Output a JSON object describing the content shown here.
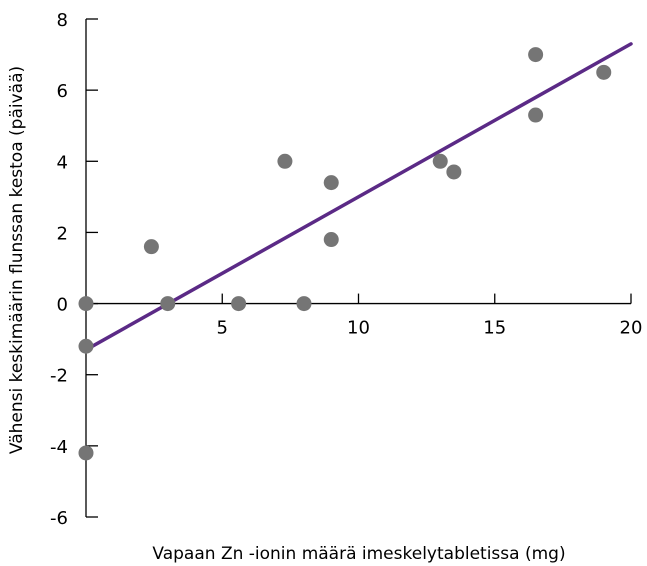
{
  "chart_data": {
    "type": "scatter",
    "title": "",
    "xlabel": "Vapaan Zn -ionin määrä imeskelytabletissa (mg)",
    "ylabel": "Vähensi keskimäärin flunssan kestoa (päivää)",
    "xlim": [
      0,
      20
    ],
    "ylim": [
      -6,
      8
    ],
    "x_ticks": [
      5,
      10,
      15,
      20
    ],
    "y_ticks": [
      -6,
      -4,
      -2,
      0,
      2,
      4,
      6,
      8
    ],
    "grid": false,
    "points": [
      {
        "x": 0,
        "y": 0
      },
      {
        "x": 0,
        "y": -1.2
      },
      {
        "x": 0,
        "y": -4.2
      },
      {
        "x": 2.4,
        "y": 1.6
      },
      {
        "x": 3.0,
        "y": 0
      },
      {
        "x": 5.6,
        "y": 0
      },
      {
        "x": 7.3,
        "y": 4.0
      },
      {
        "x": 8.0,
        "y": 0
      },
      {
        "x": 9.0,
        "y": 3.4
      },
      {
        "x": 9.0,
        "y": 1.8
      },
      {
        "x": 13.0,
        "y": 4.0
      },
      {
        "x": 13.5,
        "y": 3.7
      },
      {
        "x": 16.5,
        "y": 7.0
      },
      {
        "x": 16.5,
        "y": 5.3
      },
      {
        "x": 19.0,
        "y": 6.5
      }
    ],
    "trendline": {
      "x": [
        0,
        20
      ],
      "y": [
        -1.3,
        7.3
      ]
    },
    "colors": {
      "points": "#757575",
      "trendline": "#5b2a86",
      "axis": "#000000"
    }
  }
}
